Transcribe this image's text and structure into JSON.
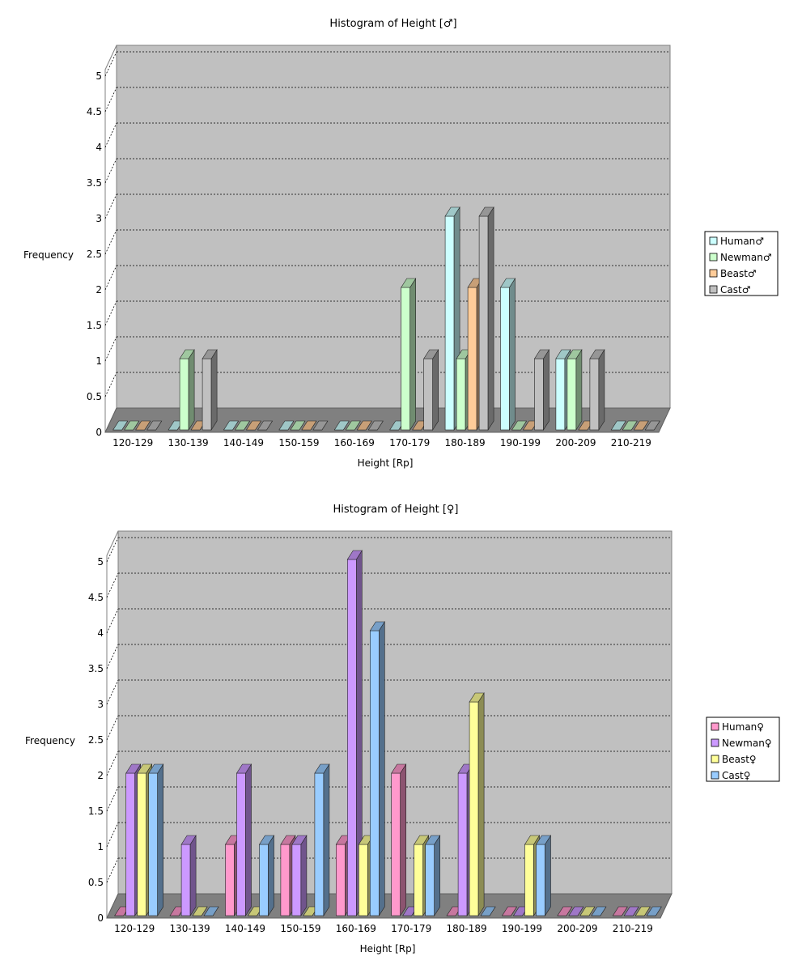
{
  "chart_data": [
    {
      "type": "bar",
      "title": "Histogram of Height [♂]",
      "xlabel": "Height [Rp]",
      "ylabel": "Frequency",
      "ylim": [
        0,
        5
      ],
      "yticks": [
        "0",
        "0.5",
        "1",
        "1.5",
        "2",
        "2.5",
        "3",
        "3.5",
        "4",
        "4.5",
        "5"
      ],
      "grid": true,
      "legend_position": "right",
      "categories": [
        "120-129",
        "130-139",
        "140-149",
        "150-159",
        "160-169",
        "170-179",
        "180-189",
        "190-199",
        "200-209",
        "210-219"
      ],
      "series": [
        {
          "name": "Human♂",
          "color": "#ccffff",
          "values": [
            0,
            0,
            0,
            0,
            0,
            0,
            3,
            2,
            1,
            0
          ]
        },
        {
          "name": "Newman♂",
          "color": "#ccffcc",
          "values": [
            0,
            1,
            0,
            0,
            0,
            2,
            1,
            0,
            1,
            0
          ]
        },
        {
          "name": "Beast♂",
          "color": "#ffcc99",
          "values": [
            0,
            0,
            0,
            0,
            0,
            0,
            2,
            0,
            0,
            0
          ]
        },
        {
          "name": "Cast♂",
          "color": "#c0c0c0",
          "values": [
            0,
            1,
            0,
            0,
            0,
            1,
            3,
            1,
            1,
            0
          ]
        }
      ]
    },
    {
      "type": "bar",
      "title": "Histogram of Height [♀]",
      "xlabel": "Height [Rp]",
      "ylabel": "Frequency",
      "ylim": [
        0,
        5
      ],
      "yticks": [
        "0",
        "0.5",
        "1",
        "1.5",
        "2",
        "2.5",
        "3",
        "3.5",
        "4",
        "4.5",
        "5"
      ],
      "grid": true,
      "legend_position": "right",
      "categories": [
        "120-129",
        "130-139",
        "140-149",
        "150-159",
        "160-169",
        "170-179",
        "180-189",
        "190-199",
        "200-209",
        "210-219"
      ],
      "series": [
        {
          "name": "Human♀",
          "color": "#ff99cc",
          "values": [
            0,
            0,
            1,
            1,
            1,
            2,
            0,
            0,
            0,
            0
          ]
        },
        {
          "name": "Newman♀",
          "color": "#cc99ff",
          "values": [
            2,
            1,
            2,
            1,
            5,
            0,
            2,
            0,
            0,
            0
          ]
        },
        {
          "name": "Beast♀",
          "color": "#ffff99",
          "values": [
            2,
            0,
            0,
            0,
            1,
            1,
            3,
            1,
            0,
            0
          ]
        },
        {
          "name": "Cast♀",
          "color": "#99ccff",
          "values": [
            2,
            0,
            1,
            2,
            4,
            1,
            0,
            1,
            0,
            0
          ]
        }
      ]
    }
  ]
}
